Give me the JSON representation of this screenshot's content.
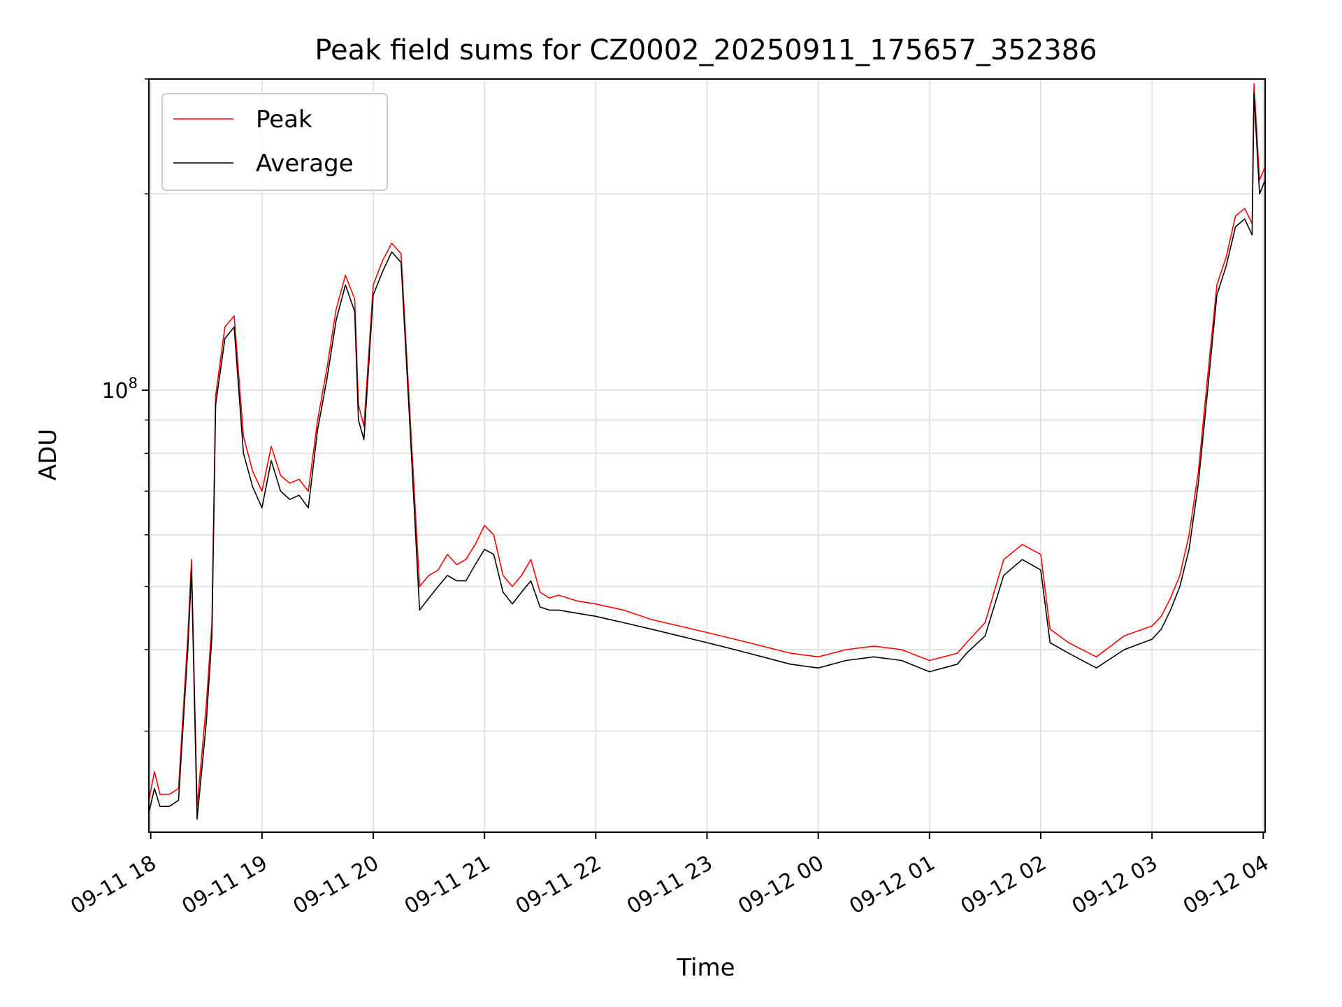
{
  "chart_data": {
    "type": "line",
    "title": "Peak field sums for CZ0002_20250911_175657_352386",
    "xlabel": "Time",
    "ylabel": "ADU",
    "yscale": "log",
    "ylim": [
      21000000,
      300000000
    ],
    "xlim": [
      "2025-09-11 17:59",
      "2025-09-12 04:01"
    ],
    "grid": true,
    "legend_position": "top-left",
    "x_ticks": [
      "09-11 18",
      "09-11 19",
      "09-11 20",
      "09-11 21",
      "09-11 22",
      "09-11 23",
      "09-12 00",
      "09-12 01",
      "09-12 02",
      "09-12 03",
      "09-12 04"
    ],
    "y_ticks": [
      {
        "value": 100000000,
        "base": "10",
        "exp": "8"
      }
    ],
    "x": [
      "2025-09-11 17:59",
      "2025-09-11 18:02",
      "2025-09-11 18:05",
      "2025-09-11 18:10",
      "2025-09-11 18:15",
      "2025-09-11 18:20",
      "2025-09-11 18:22",
      "2025-09-11 18:25",
      "2025-09-11 18:30",
      "2025-09-11 18:33",
      "2025-09-11 18:35",
      "2025-09-11 18:40",
      "2025-09-11 18:45",
      "2025-09-11 18:50",
      "2025-09-11 18:55",
      "2025-09-11 19:00",
      "2025-09-11 19:05",
      "2025-09-11 19:10",
      "2025-09-11 19:15",
      "2025-09-11 19:20",
      "2025-09-11 19:25",
      "2025-09-11 19:30",
      "2025-09-11 19:35",
      "2025-09-11 19:40",
      "2025-09-11 19:45",
      "2025-09-11 19:50",
      "2025-09-11 19:52",
      "2025-09-11 19:55",
      "2025-09-11 20:00",
      "2025-09-11 20:05",
      "2025-09-11 20:10",
      "2025-09-11 20:15",
      "2025-09-11 20:20",
      "2025-09-11 20:25",
      "2025-09-11 20:30",
      "2025-09-11 20:35",
      "2025-09-11 20:40",
      "2025-09-11 20:45",
      "2025-09-11 20:50",
      "2025-09-11 20:55",
      "2025-09-11 21:00",
      "2025-09-11 21:05",
      "2025-09-11 21:10",
      "2025-09-11 21:15",
      "2025-09-11 21:20",
      "2025-09-11 21:25",
      "2025-09-11 21:30",
      "2025-09-11 21:35",
      "2025-09-11 21:40",
      "2025-09-11 21:50",
      "2025-09-11 22:00",
      "2025-09-11 22:15",
      "2025-09-11 22:30",
      "2025-09-11 22:45",
      "2025-09-11 23:00",
      "2025-09-11 23:15",
      "2025-09-11 23:30",
      "2025-09-11 23:45",
      "2025-09-12 00:00",
      "2025-09-12 00:15",
      "2025-09-12 00:30",
      "2025-09-12 00:45",
      "2025-09-12 01:00",
      "2025-09-12 01:15",
      "2025-09-12 01:20",
      "2025-09-12 01:30",
      "2025-09-12 01:40",
      "2025-09-12 01:50",
      "2025-09-12 02:00",
      "2025-09-12 02:05",
      "2025-09-12 02:15",
      "2025-09-12 02:30",
      "2025-09-12 02:45",
      "2025-09-12 03:00",
      "2025-09-12 03:05",
      "2025-09-12 03:10",
      "2025-09-12 03:15",
      "2025-09-12 03:20",
      "2025-09-12 03:25",
      "2025-09-12 03:30",
      "2025-09-12 03:35",
      "2025-09-12 03:40",
      "2025-09-12 03:45",
      "2025-09-12 03:50",
      "2025-09-12 03:54",
      "2025-09-12 03:55",
      "2025-09-12 03:58",
      "2025-09-12 04:01"
    ],
    "series": [
      {
        "name": "Peak",
        "color": "#ff0000",
        "values": [
          23500000,
          26000000,
          24000000,
          24000000,
          24500000,
          42000000,
          55000000,
          23000000,
          33000000,
          44000000,
          98000000,
          125000000,
          130000000,
          85000000,
          75000000,
          70000000,
          82000000,
          74000000,
          72000000,
          73000000,
          70000000,
          90000000,
          108000000,
          133000000,
          150000000,
          138000000,
          95000000,
          88000000,
          145000000,
          158000000,
          168000000,
          162000000,
          90000000,
          50000000,
          52000000,
          53000000,
          56000000,
          54000000,
          55000000,
          58000000,
          62000000,
          60000000,
          52000000,
          50000000,
          52000000,
          55000000,
          49000000,
          48000000,
          48500000,
          47500000,
          47000000,
          46000000,
          44500000,
          43500000,
          42500000,
          41500000,
          40500000,
          39500000,
          39000000,
          40000000,
          40500000,
          40000000,
          38500000,
          39500000,
          41000000,
          44000000,
          55000000,
          58000000,
          56000000,
          43000000,
          41000000,
          39000000,
          42000000,
          43500000,
          45000000,
          48000000,
          52000000,
          60000000,
          75000000,
          105000000,
          145000000,
          160000000,
          185000000,
          190000000,
          180000000,
          295000000,
          210000000,
          220000000
        ]
      },
      {
        "name": "Average",
        "color": "#000000",
        "values": [
          22500000,
          24500000,
          23000000,
          23000000,
          23500000,
          40000000,
          53000000,
          22000000,
          31000000,
          42000000,
          95000000,
          120000000,
          125000000,
          80000000,
          71000000,
          66000000,
          78000000,
          70000000,
          68000000,
          69000000,
          66000000,
          87000000,
          104000000,
          128000000,
          145000000,
          132000000,
          90000000,
          84000000,
          140000000,
          152000000,
          163000000,
          157000000,
          86000000,
          46000000,
          48000000,
          50000000,
          52000000,
          51000000,
          51000000,
          54000000,
          57000000,
          56000000,
          49000000,
          47000000,
          49000000,
          51000000,
          46500000,
          46000000,
          46000000,
          45500000,
          45000000,
          44000000,
          43000000,
          42000000,
          41000000,
          40000000,
          39000000,
          38000000,
          37500000,
          38500000,
          39000000,
          38500000,
          37000000,
          38000000,
          39500000,
          42000000,
          52000000,
          55000000,
          53000000,
          41000000,
          39500000,
          37500000,
          40000000,
          41500000,
          43000000,
          46000000,
          50000000,
          57000000,
          72000000,
          100000000,
          140000000,
          155000000,
          178000000,
          183000000,
          173000000,
          285000000,
          200000000,
          210000000
        ]
      }
    ]
  }
}
